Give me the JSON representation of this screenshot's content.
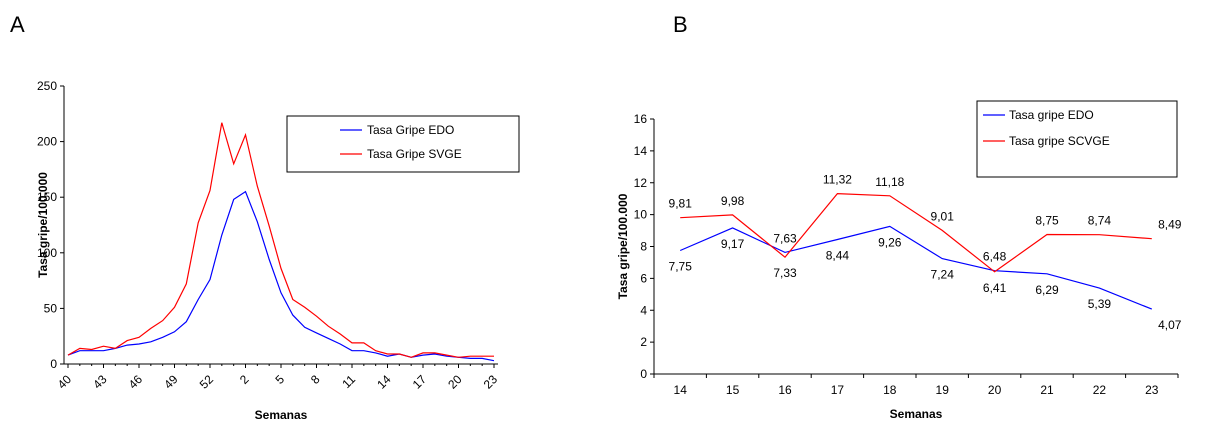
{
  "panels": {
    "a_label": "A",
    "b_label": "B"
  },
  "chart_data": [
    {
      "type": "line",
      "title": "",
      "xlabel": "Semanas",
      "ylabel": "Tasa gripe/100.000",
      "ylim": [
        0,
        250
      ],
      "yticks": [
        0,
        50,
        100,
        150,
        200,
        250
      ],
      "xtick_labels": [
        "40",
        "43",
        "46",
        "49",
        "52",
        "2",
        "5",
        "8",
        "11",
        "14",
        "17",
        "20",
        "23"
      ],
      "categories": [
        "40",
        "41",
        "42",
        "43",
        "44",
        "45",
        "46",
        "47",
        "48",
        "49",
        "50",
        "51",
        "52",
        "53",
        "1",
        "2",
        "3",
        "4",
        "5",
        "6",
        "7",
        "8",
        "9",
        "10",
        "11",
        "12",
        "13",
        "14",
        "15",
        "16",
        "17",
        "18",
        "19",
        "20",
        "21",
        "22",
        "23"
      ],
      "grid": false,
      "legend": "top-right",
      "series": [
        {
          "name": "Tasa Gripe EDO",
          "color": "#0000ff",
          "values": [
            8,
            12,
            12,
            12,
            14,
            17,
            18,
            20,
            24,
            29,
            38,
            58,
            76,
            116,
            148,
            155,
            128,
            94,
            64,
            44,
            33,
            28,
            23,
            18,
            12,
            12,
            10,
            7,
            9,
            6,
            8,
            9,
            7,
            6,
            5,
            5,
            3
          ]
        },
        {
          "name": "Tasa Gripe SVGE",
          "color": "#ff0000",
          "values": [
            8,
            14,
            13,
            16,
            14,
            21,
            24,
            32,
            39,
            51,
            72,
            127,
            156,
            217,
            180,
            206,
            160,
            124,
            86,
            58,
            51,
            43,
            34,
            27,
            19,
            19,
            12,
            9,
            9,
            6,
            10,
            10,
            8,
            6,
            7,
            7,
            7
          ]
        }
      ]
    },
    {
      "type": "line",
      "title": "",
      "xlabel": "Semanas",
      "ylabel": "Tasa gripe/100.000",
      "ylim": [
        0,
        16
      ],
      "yticks": [
        0,
        2,
        4,
        6,
        8,
        10,
        12,
        14,
        16
      ],
      "categories": [
        "14",
        "15",
        "16",
        "17",
        "18",
        "19",
        "20",
        "21",
        "22",
        "23"
      ],
      "grid": false,
      "legend": "top-right",
      "series": [
        {
          "name": "Tasa gripe EDO",
          "color": "#0000ff",
          "values": [
            7.75,
            9.17,
            7.63,
            8.44,
            9.26,
            7.24,
            6.48,
            6.29,
            5.39,
            4.07
          ],
          "labels": [
            "7,75",
            "9,17",
            "7,63",
            "8,44",
            "9,26",
            "7,24",
            "6,48",
            "6,29",
            "5,39",
            "4,07"
          ]
        },
        {
          "name": "Tasa gripe SCVGE",
          "color": "#ff0000",
          "values": [
            9.81,
            9.98,
            7.33,
            11.32,
            11.18,
            9.01,
            6.41,
            8.75,
            8.74,
            8.49
          ],
          "labels": [
            "9,81",
            "9,98",
            "7,33",
            "11,32",
            "11,18",
            "9,01",
            "6,41",
            "8,75",
            "8,74",
            "8,49"
          ]
        }
      ]
    }
  ]
}
